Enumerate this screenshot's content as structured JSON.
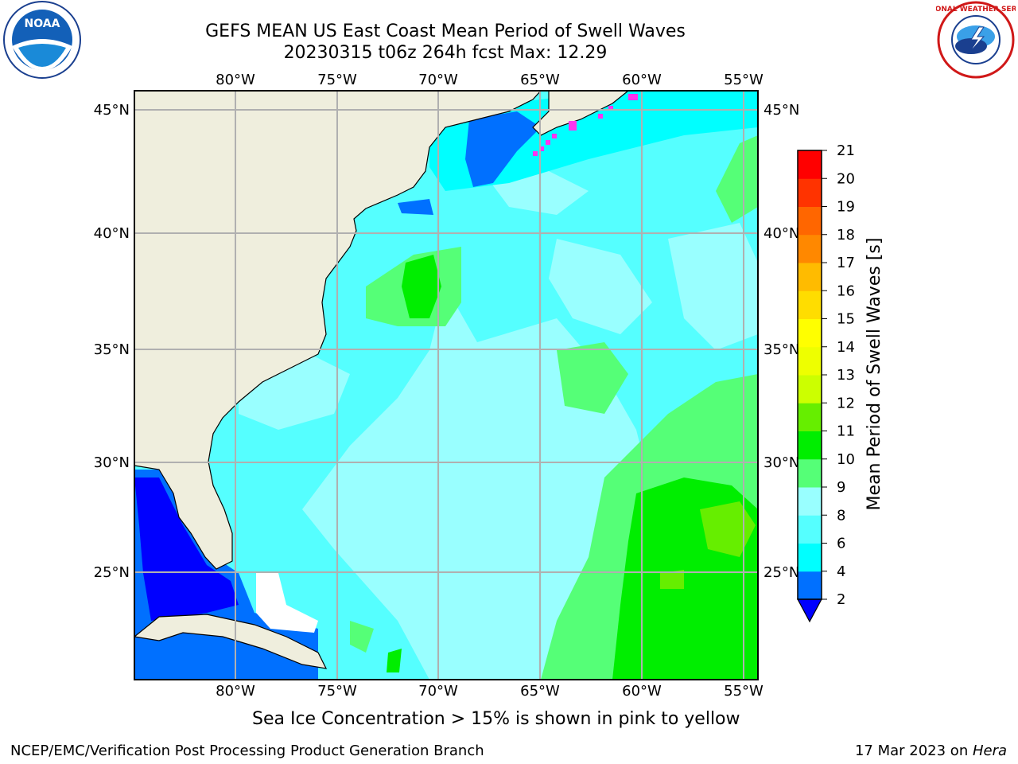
{
  "title": {
    "line1": "GEFS MEAN US East Coast Mean Period of Swell Waves",
    "line2": "20230315 t06z 264h fcst   Max: 12.29"
  },
  "logos": {
    "left": "noaa-logo",
    "left_text": "NOAA",
    "right": "nws-logo",
    "right_text": "NATIONAL WEATHER SERVICE"
  },
  "map": {
    "lon_labels": [
      "80°W",
      "75°W",
      "70°W",
      "65°W",
      "60°W",
      "55°W"
    ],
    "lat_labels": [
      "45°N",
      "40°N",
      "35°N",
      "30°N",
      "25°N"
    ],
    "colors": {
      "land": "#efeedd",
      "ocean_base": "#55ffff",
      "grid": "#b0b0b0"
    }
  },
  "colorbar": {
    "label": "Mean Period of Swell Waves [s]",
    "ticks": [
      "2",
      "4",
      "6",
      "8",
      "9",
      "10",
      "11",
      "12",
      "13",
      "14",
      "15",
      "16",
      "17",
      "18",
      "19",
      "20",
      "21"
    ],
    "colors": [
      "#0070ff",
      "#00ffff",
      "#55ffff",
      "#99ffff",
      "#55ff77",
      "#00ee00",
      "#66ee00",
      "#ccff00",
      "#eeff00",
      "#ffff00",
      "#ffdd00",
      "#ffbb00",
      "#ff8800",
      "#ff6600",
      "#ff3300",
      "#ff0000"
    ],
    "extend_color": "#0000ff"
  },
  "caption": "Sea Ice Concentration > 15% is shown in pink to yellow",
  "footer": {
    "left": "NCEP/EMC/Verification Post Processing Product Generation Branch",
    "right_date": "17 Mar 2023 on ",
    "right_host": "Hera"
  }
}
